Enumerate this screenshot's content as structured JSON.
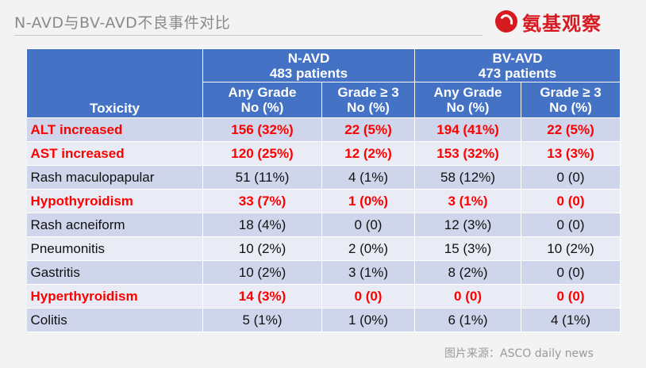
{
  "title": "N-AVD与BV-AVD不良事件对比",
  "logo": {
    "text": "氨基观察"
  },
  "table": {
    "toxicity_header": "Toxicity",
    "groups": [
      {
        "name": "N-AVD",
        "patients": "483 patients"
      },
      {
        "name": "BV-AVD",
        "patients": "473 patients"
      }
    ],
    "subheaders": {
      "any_grade": "Any Grade",
      "grade3": "Grade ≥ 3",
      "unit": "No (%)"
    },
    "rows": [
      {
        "name": "ALT increased",
        "highlight": true,
        "values": [
          "156 (32%)",
          "22 (5%)",
          "194 (41%)",
          "22 (5%)"
        ]
      },
      {
        "name": "AST increased",
        "highlight": true,
        "values": [
          "120 (25%)",
          "12 (2%)",
          "153 (32%)",
          "13 (3%)"
        ]
      },
      {
        "name": "Rash maculopapular",
        "highlight": false,
        "values": [
          "51 (11%)",
          "4 (1%)",
          "58 (12%)",
          "0 (0)"
        ]
      },
      {
        "name": "Hypothyroidism",
        "highlight": true,
        "values": [
          "33 (7%)",
          "1 (0%)",
          "3 (1%)",
          "0 (0)"
        ]
      },
      {
        "name": "Rash acneiform",
        "highlight": false,
        "values": [
          "18 (4%)",
          "0 (0)",
          "12 (3%)",
          "0 (0)"
        ]
      },
      {
        "name": "Pneumonitis",
        "highlight": false,
        "values": [
          "10 (2%)",
          "2 (0%)",
          "15 (3%)",
          "10 (2%)"
        ]
      },
      {
        "name": "Gastritis",
        "highlight": false,
        "values": [
          "10 (2%)",
          "3 (1%)",
          "8 (2%)",
          "0 (0)"
        ]
      },
      {
        "name": "Hyperthyroidism",
        "highlight": true,
        "values": [
          "14 (3%)",
          "0 (0)",
          "0 (0)",
          "0 (0)"
        ]
      },
      {
        "name": "Colitis",
        "highlight": false,
        "values": [
          "5 (1%)",
          "1 (0%)",
          "6 (1%)",
          "4 (1%)"
        ]
      }
    ],
    "highlight_color": "#ff0000",
    "header_color": "#4472c4"
  },
  "source": "图片来源：ASCO daily news"
}
